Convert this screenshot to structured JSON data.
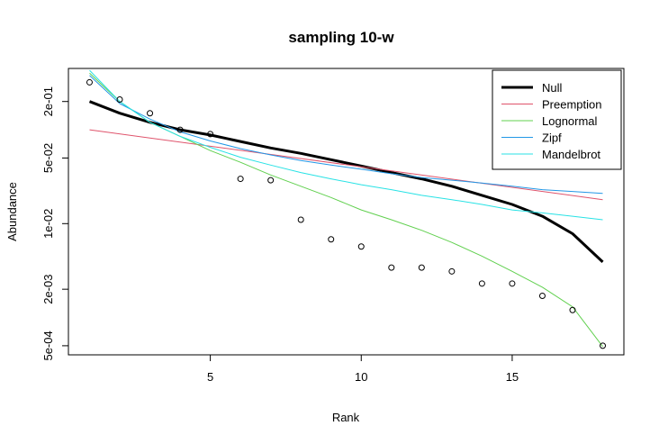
{
  "chart_data": {
    "type": "line",
    "title": "sampling 10-w",
    "xlabel": "Rank",
    "ylabel": "Abundance",
    "y_scale": "log",
    "xlim": [
      0.3,
      18.7
    ],
    "ylim": [
      0.0004,
      0.45
    ],
    "x_ticks": [
      5,
      10,
      15
    ],
    "y_ticks": [
      {
        "value": 0.2,
        "label": "2e-01"
      },
      {
        "value": 0.05,
        "label": "5e-02"
      },
      {
        "value": 0.01,
        "label": "1e-02"
      },
      {
        "value": 0.002,
        "label": "2e-03"
      },
      {
        "value": 0.0005,
        "label": "5e-04"
      }
    ],
    "legend_position": "top-right",
    "observed_points": {
      "marker": "open-circle",
      "x": [
        1,
        2,
        3,
        4,
        5,
        6,
        7,
        8,
        9,
        10,
        11,
        12,
        13,
        14,
        15,
        16,
        17,
        18
      ],
      "y": [
        0.32,
        0.21,
        0.15,
        0.1,
        0.09,
        0.03,
        0.029,
        0.011,
        0.0068,
        0.0057,
        0.0034,
        0.0034,
        0.0031,
        0.0023,
        0.0023,
        0.0017,
        0.0012,
        0.0005
      ]
    },
    "series": [
      {
        "name": "Null",
        "color": "#000000",
        "width": 3,
        "x": [
          1,
          2,
          3,
          4,
          5,
          6,
          7,
          8,
          9,
          10,
          11,
          12,
          13,
          14,
          15,
          16,
          17,
          18
        ],
        "y": [
          0.2,
          0.15,
          0.12,
          0.1,
          0.088,
          0.075,
          0.064,
          0.056,
          0.048,
          0.041,
          0.035,
          0.03,
          0.025,
          0.02,
          0.016,
          0.012,
          0.0078,
          0.0039
        ]
      },
      {
        "name": "Preemption",
        "color": "#DF536B",
        "width": 1,
        "x": [
          1,
          18
        ],
        "y": [
          0.1,
          0.018
        ]
      },
      {
        "name": "Lognormal",
        "color": "#61D04F",
        "width": 1,
        "x": [
          1,
          2,
          3,
          4,
          5,
          6,
          7,
          8,
          9,
          10,
          11,
          12,
          13,
          14,
          15,
          16,
          17,
          18
        ],
        "y": [
          0.4,
          0.2,
          0.12,
          0.085,
          0.06,
          0.045,
          0.033,
          0.025,
          0.019,
          0.014,
          0.011,
          0.0085,
          0.0063,
          0.0045,
          0.0031,
          0.0021,
          0.0013,
          0.00049
        ]
      },
      {
        "name": "Zipf",
        "color": "#2297E6",
        "width": 1,
        "x": [
          1,
          2,
          3,
          4,
          5,
          6,
          7,
          8,
          9,
          10,
          11,
          12,
          13,
          14,
          15,
          16,
          17,
          18
        ],
        "y": [
          0.38,
          0.19,
          0.13,
          0.095,
          0.076,
          0.063,
          0.054,
          0.047,
          0.042,
          0.038,
          0.034,
          0.031,
          0.029,
          0.027,
          0.025,
          0.023,
          0.022,
          0.021
        ]
      },
      {
        "name": "Mandelbrot",
        "color": "#28E2E5",
        "width": 1,
        "x": [
          1,
          2,
          3,
          4,
          5,
          6,
          7,
          8,
          9,
          10,
          11,
          12,
          13,
          14,
          15,
          16,
          17,
          18
        ],
        "y": [
          0.43,
          0.2,
          0.12,
          0.085,
          0.065,
          0.051,
          0.042,
          0.035,
          0.03,
          0.026,
          0.023,
          0.02,
          0.018,
          0.016,
          0.014,
          0.013,
          0.012,
          0.011
        ]
      }
    ]
  }
}
